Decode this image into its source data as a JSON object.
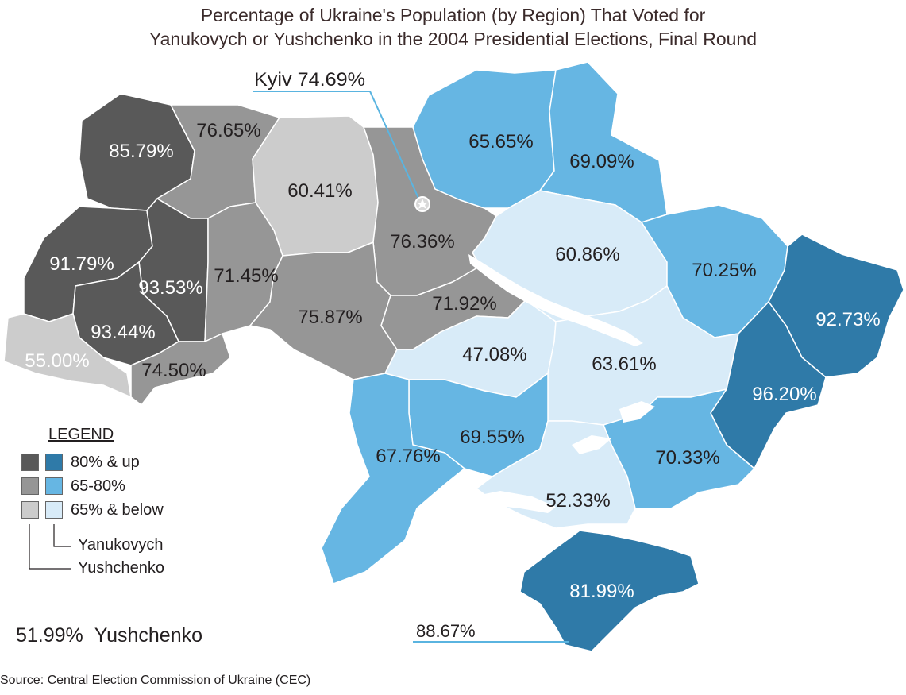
{
  "title_line1": "Percentage of Ukraine's Population (by Region) That Voted for",
  "title_line2": "Yanukovych or Yushchenko in the 2004 Presidential Elections, Final Round",
  "colors": {
    "yushchenko_high": "#595959",
    "yushchenko_mid": "#969696",
    "yushchenko_low": "#cccccc",
    "yanukovych_high": "#2f7aa8",
    "yanukovych_mid": "#66b6e3",
    "yanukovych_low": "#d8ebf8",
    "border": "#ffffff"
  },
  "legend": {
    "title": "LEGEND",
    "rows": [
      {
        "label": "80% & up"
      },
      {
        "label": "65-80%"
      },
      {
        "label": "65% & below"
      }
    ],
    "yanukovych_label": "Yanukovych",
    "yushchenko_label": "Yushchenko"
  },
  "kyiv_city": {
    "label": "Kyiv 74.69%",
    "candidate": "Yushchenko",
    "value": 74.69
  },
  "sevastopol": {
    "label": "88.67%",
    "candidate": "Yanukovych",
    "value": 88.67
  },
  "regions": [
    {
      "id": "volyn",
      "label": "85.79%",
      "value": 85.79,
      "candidate": "Yushchenko",
      "band": "high"
    },
    {
      "id": "rivne",
      "label": "76.65%",
      "value": 76.65,
      "candidate": "Yushchenko",
      "band": "mid"
    },
    {
      "id": "zhytomyr",
      "label": "60.41%",
      "value": 60.41,
      "candidate": "Yushchenko",
      "band": "low"
    },
    {
      "id": "kyiv-oblast",
      "label": "76.36%",
      "value": 76.36,
      "candidate": "Yushchenko",
      "band": "mid"
    },
    {
      "id": "chernihiv",
      "label": "65.65%",
      "value": 65.65,
      "candidate": "Yanukovych",
      "band": "mid"
    },
    {
      "id": "sumy",
      "label": "69.09%",
      "value": 69.09,
      "candidate": "Yanukovych",
      "band": "mid"
    },
    {
      "id": "lviv",
      "label": "91.79%",
      "value": 91.79,
      "candidate": "Yushchenko",
      "band": "high"
    },
    {
      "id": "ternopil",
      "label": "93.53%",
      "value": 93.53,
      "candidate": "Yushchenko",
      "band": "high"
    },
    {
      "id": "khmelnytskyi",
      "label": "71.45%",
      "value": 71.45,
      "candidate": "Yushchenko",
      "band": "mid"
    },
    {
      "id": "vinnytsia",
      "label": "75.87%",
      "value": 75.87,
      "candidate": "Yushchenko",
      "band": "mid"
    },
    {
      "id": "cherkasy",
      "label": "71.92%",
      "value": 71.92,
      "candidate": "Yushchenko",
      "band": "mid"
    },
    {
      "id": "poltava",
      "label": "60.86%",
      "value": 60.86,
      "candidate": "Yanukovych",
      "band": "low"
    },
    {
      "id": "kharkiv",
      "label": "70.25%",
      "value": 70.25,
      "candidate": "Yanukovych",
      "band": "mid"
    },
    {
      "id": "luhansk",
      "label": "92.73%",
      "value": 92.73,
      "candidate": "Yanukovych",
      "band": "high"
    },
    {
      "id": "ivano-frankivsk",
      "label": "93.44%",
      "value": 93.44,
      "candidate": "Yushchenko",
      "band": "high"
    },
    {
      "id": "zakarpattia",
      "label": "55.00%",
      "value": 55.0,
      "candidate": "Yushchenko",
      "band": "low"
    },
    {
      "id": "chernivtsi",
      "label": "74.50%",
      "value": 74.5,
      "candidate": "Yushchenko",
      "band": "mid"
    },
    {
      "id": "kirovohrad",
      "label": "47.08%",
      "value": 47.08,
      "candidate": "Yanukovych",
      "band": "low"
    },
    {
      "id": "dnipropetrovsk",
      "label": "63.61%",
      "value": 63.61,
      "candidate": "Yanukovych",
      "band": "low"
    },
    {
      "id": "donetsk",
      "label": "96.20%",
      "value": 96.2,
      "candidate": "Yanukovych",
      "band": "high"
    },
    {
      "id": "mykolaiv",
      "label": "69.55%",
      "value": 69.55,
      "candidate": "Yanukovych",
      "band": "mid"
    },
    {
      "id": "odesa",
      "label": "67.76%",
      "value": 67.76,
      "candidate": "Yanukovych",
      "band": "mid"
    },
    {
      "id": "zaporizhzhia",
      "label": "70.33%",
      "value": 70.33,
      "candidate": "Yanukovych",
      "band": "mid"
    },
    {
      "id": "kherson",
      "label": "52.33%",
      "value": 52.33,
      "candidate": "Yanukovych",
      "band": "low"
    },
    {
      "id": "crimea",
      "label": "81.99%",
      "value": 81.99,
      "candidate": "Yanukovych",
      "band": "high"
    }
  ],
  "national_total": {
    "value_label": "51.99%",
    "candidate": "Yushchenko"
  },
  "source": "Source: Central Election Commission of Ukraine (CEC)"
}
